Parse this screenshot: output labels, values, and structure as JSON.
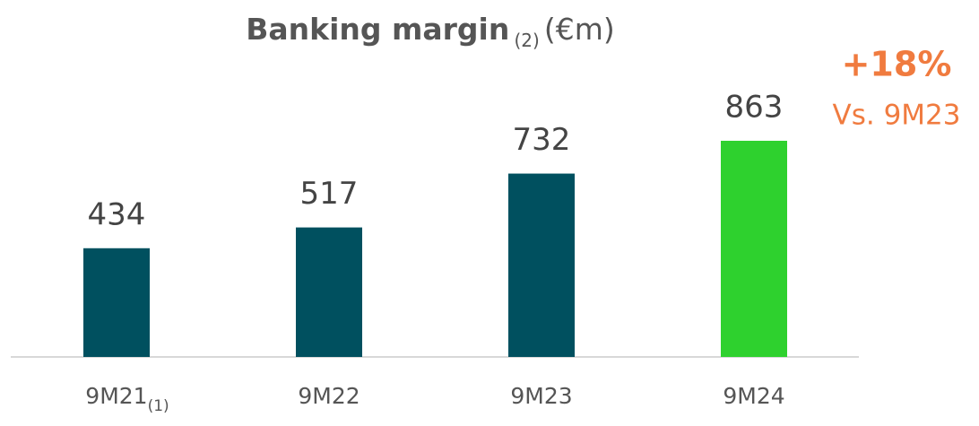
{
  "chart_data": {
    "type": "bar",
    "title": "Banking margin",
    "title_note": "(2)",
    "title_unit": "(€m)",
    "categories": [
      "9M21",
      "9M22",
      "9M23",
      "9M24"
    ],
    "category_notes": [
      "(1)",
      null,
      null,
      null
    ],
    "values": [
      434,
      517,
      732,
      863
    ],
    "colors": [
      "#00505f",
      "#00505f",
      "#00505f",
      "#2ed12e"
    ],
    "annotations": [
      "+18%",
      "Vs. 9M23"
    ]
  }
}
